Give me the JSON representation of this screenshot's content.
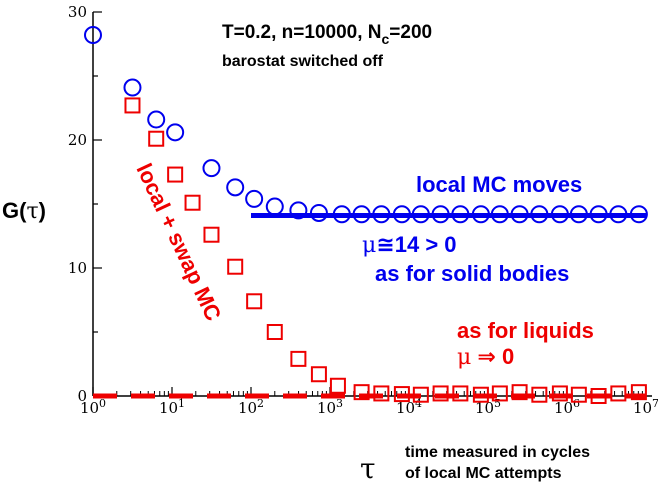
{
  "chart_data": {
    "type": "scatter",
    "title": "T=0.2, n=10000, N",
    "title_subscript": "c",
    "title_suffix": "=200",
    "subtitle": "barostat switched off",
    "ylabel": "G(τ)",
    "xlabel": "τ",
    "xlabel_note_line1": "time measured in cycles",
    "xlabel_note_line2": "of local MC attempts",
    "xscale": "log",
    "xlim": [
      1,
      10000000
    ],
    "ylim": [
      0,
      30
    ],
    "x_tick_base": "10",
    "x_tick_exponents": [
      "0",
      "1",
      "2",
      "3",
      "4",
      "5",
      "6",
      "7"
    ],
    "y_ticks": [
      "0",
      "10",
      "20",
      "30"
    ],
    "y_minor_step": 5,
    "series": [
      {
        "name": "local MC moves",
        "marker": "circle",
        "color": "#0000ee",
        "x": [
          1,
          3.16,
          6.31,
          10.96,
          31.6,
          63.1,
          109.6,
          200,
          398,
          724,
          1412,
          2512,
          4467,
          8128,
          14125,
          25120,
          44670,
          81280,
          141250,
          251200,
          446700,
          812800,
          1412500,
          2512000,
          4467000,
          8128000
        ],
        "y": [
          28.2,
          24.1,
          21.6,
          20.6,
          17.8,
          16.3,
          15.4,
          14.8,
          14.5,
          14.3,
          14.2,
          14.2,
          14.2,
          14.2,
          14.2,
          14.2,
          14.2,
          14.2,
          14.2,
          14.2,
          14.2,
          14.2,
          14.2,
          14.2,
          14.2,
          14.2
        ]
      },
      {
        "name": "local + swap MC",
        "marker": "square",
        "color": "#ee0000",
        "x": [
          3.16,
          6.31,
          10.96,
          18.2,
          31.6,
          63.1,
          109.6,
          200,
          398,
          724,
          1260,
          2512,
          4467,
          8128,
          14125,
          25120,
          44670,
          81280,
          141250,
          251200,
          446700,
          812800,
          1412500,
          2512000,
          4467000,
          8128000
        ],
        "y": [
          22.7,
          20.1,
          17.3,
          15.1,
          12.6,
          10.1,
          7.4,
          5.0,
          2.9,
          1.7,
          0.8,
          0.3,
          0.2,
          0.15,
          0.1,
          0.2,
          0.2,
          0.1,
          0.2,
          0.3,
          0.1,
          0.2,
          0.1,
          0.0,
          0.2,
          0.3
        ]
      }
    ],
    "reference_lines": [
      {
        "name": "plateau",
        "color": "#0000ee",
        "style": "solid",
        "x": [
          100,
          10000000
        ],
        "y": 14.1
      },
      {
        "name": "zero",
        "color": "#ee0000",
        "style": "dashed",
        "x": [
          1,
          10000000
        ],
        "y": 0
      }
    ],
    "annotations": {
      "local_mc_moves": "local MC moves",
      "mu_solid_symbol": "μ",
      "mu_solid_rest": "≅14  > 0",
      "as_for_solid": "as for solid bodies",
      "local_swap": "local + swap MC",
      "as_for_liquids": "as for liquids",
      "mu_liquid_symbol": "μ",
      "mu_liquid_rest": " ⇒ 0"
    },
    "colors": {
      "blue": "#0000ee",
      "red": "#ee0000",
      "axis": "#000000"
    }
  }
}
